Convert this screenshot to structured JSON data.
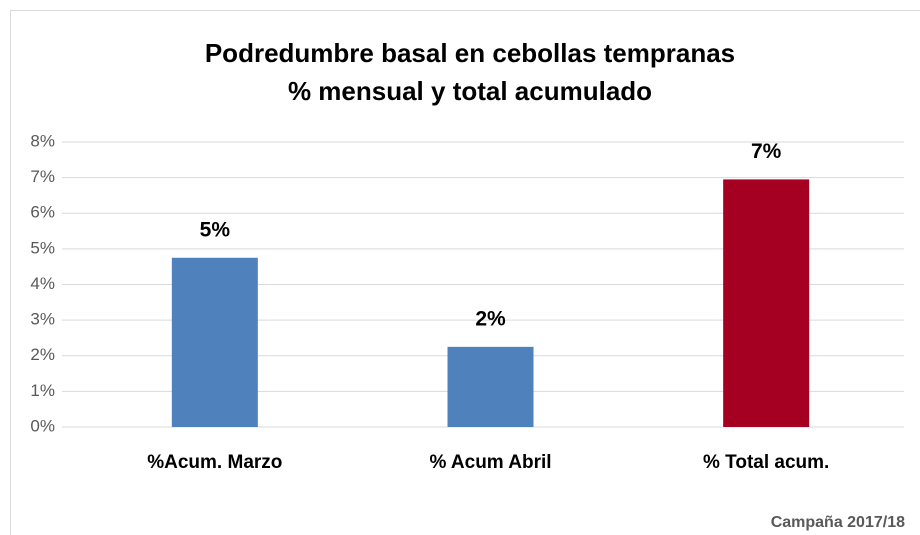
{
  "chart_data": {
    "type": "bar",
    "title": "Podredumbre basal en cebollas tempranas",
    "subtitle": "% mensual y total acumulado",
    "categories": [
      "%Acum. Marzo",
      "% Acum Abril",
      "% Total acum."
    ],
    "values": [
      4.75,
      2.25,
      6.95
    ],
    "value_labels": [
      "5%",
      "2%",
      "7%"
    ],
    "colors": [
      "#4f81bd",
      "#4f81bd",
      "#a50021"
    ],
    "ylim": [
      0,
      8
    ],
    "yticks": [
      {
        "value": 0,
        "label": "0%"
      },
      {
        "value": 1,
        "label": "1%"
      },
      {
        "value": 2,
        "label": "2%"
      },
      {
        "value": 3,
        "label": "3%"
      },
      {
        "value": 4,
        "label": "4%"
      },
      {
        "value": 5,
        "label": "5%"
      },
      {
        "value": 6,
        "label": "6%"
      },
      {
        "value": 7,
        "label": "7%"
      },
      {
        "value": 8,
        "label": "8%"
      }
    ],
    "grid": true,
    "annotation": "Campaña 2017/18"
  }
}
